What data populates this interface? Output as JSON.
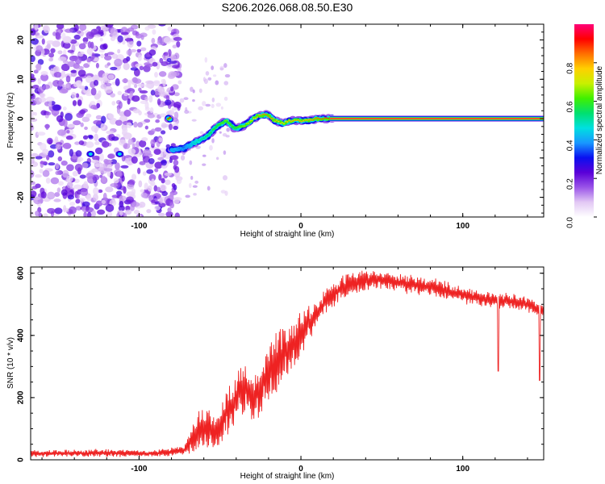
{
  "title": "S206.2026.068.08.50.E30",
  "chart_data": [
    {
      "type": "heatmap",
      "title": "S206.2026.068.08.50.E30",
      "xlabel": "Height of straight line (km)",
      "ylabel": "Frequency (Hz)",
      "xlim": [
        -167,
        150
      ],
      "ylim": [
        -25,
        24
      ],
      "xticks": [
        -100,
        0,
        100
      ],
      "xtick_labels": [
        "-100",
        "0",
        "100"
      ],
      "yticks": [
        -20,
        -10,
        0,
        10,
        20
      ],
      "ytick_labels": [
        "-20",
        "-10",
        "0",
        "10",
        "20"
      ],
      "colorbar": {
        "label": "Normalized spectral amplitude",
        "range": [
          0,
          1
        ],
        "ticks": [
          0.0,
          0.2,
          0.4,
          0.6,
          0.8
        ],
        "tick_labels": [
          "0.0",
          "0.2",
          "0.4",
          "0.6",
          "0.8"
        ],
        "colormap": [
          "#ffffff",
          "#e2c8f4",
          "#9a54e8",
          "#5a00d8",
          "#0a10f0",
          "#1898ff",
          "#00e0e0",
          "#00e070",
          "#40f000",
          "#c8f000",
          "#ffd000",
          "#ff7000",
          "#ff0000",
          "#ff0078"
        ]
      },
      "noise_region_x": [
        -167,
        -75
      ],
      "peak_track": [
        {
          "x": -80,
          "freq": -8,
          "amp": 0.45
        },
        {
          "x": -72,
          "freq": -7.5,
          "amp": 0.4
        },
        {
          "x": -65,
          "freq": -6,
          "amp": 0.5
        },
        {
          "x": -58,
          "freq": -4.5,
          "amp": 0.55
        },
        {
          "x": -52,
          "freq": -2,
          "amp": 0.6
        },
        {
          "x": -46,
          "freq": -0.5,
          "amp": 0.65
        },
        {
          "x": -41,
          "freq": -2.5,
          "amp": 0.6
        },
        {
          "x": -36,
          "freq": -2,
          "amp": 0.65
        },
        {
          "x": -31,
          "freq": -0.5,
          "amp": 0.7
        },
        {
          "x": -26,
          "freq": 0.8,
          "amp": 0.8
        },
        {
          "x": -21,
          "freq": 1,
          "amp": 0.85
        },
        {
          "x": -16,
          "freq": -0.5,
          "amp": 0.8
        },
        {
          "x": -11,
          "freq": -1.2,
          "amp": 0.75
        },
        {
          "x": -6,
          "freq": -0.5,
          "amp": 0.8
        },
        {
          "x": -1,
          "freq": -0.5,
          "amp": 0.8
        },
        {
          "x": 4,
          "freq": -0.6,
          "amp": 0.8
        },
        {
          "x": 10,
          "freq": 0,
          "amp": 0.85
        },
        {
          "x": 18,
          "freq": 0,
          "amp": 0.9
        },
        {
          "x": 150,
          "freq": 0,
          "amp": 0.9
        }
      ]
    },
    {
      "type": "line",
      "xlabel": "Height of straight line (km)",
      "ylabel": "SNR (10 * v/v)",
      "xlim": [
        -167,
        150
      ],
      "ylim": [
        0,
        620
      ],
      "xticks": [
        -100,
        0,
        100
      ],
      "xtick_labels": [
        "-100",
        "0",
        "100"
      ],
      "yticks": [
        0,
        200,
        400,
        600
      ],
      "ytick_labels": [
        "0",
        "200",
        "400",
        "600"
      ],
      "series": [
        {
          "name": "SNR",
          "color": "#ee2222",
          "envelope": [
            {
              "x": -167,
              "mean": 20,
              "amp": 10
            },
            {
              "x": -120,
              "mean": 22,
              "amp": 12
            },
            {
              "x": -90,
              "mean": 20,
              "amp": 10
            },
            {
              "x": -72,
              "mean": 30,
              "amp": 15
            },
            {
              "x": -62,
              "mean": 100,
              "amp": 70
            },
            {
              "x": -52,
              "mean": 90,
              "amp": 60
            },
            {
              "x": -45,
              "mean": 160,
              "amp": 70
            },
            {
              "x": -36,
              "mean": 230,
              "amp": 80
            },
            {
              "x": -28,
              "mean": 200,
              "amp": 80
            },
            {
              "x": -20,
              "mean": 290,
              "amp": 90
            },
            {
              "x": -12,
              "mean": 330,
              "amp": 90
            },
            {
              "x": -5,
              "mean": 370,
              "amp": 80
            },
            {
              "x": 5,
              "mean": 440,
              "amp": 50
            },
            {
              "x": 15,
              "mean": 510,
              "amp": 40
            },
            {
              "x": 30,
              "mean": 570,
              "amp": 35
            },
            {
              "x": 50,
              "mean": 580,
              "amp": 30
            },
            {
              "x": 80,
              "mean": 555,
              "amp": 30
            },
            {
              "x": 110,
              "mean": 520,
              "amp": 25
            },
            {
              "x": 140,
              "mean": 500,
              "amp": 25
            },
            {
              "x": 150,
              "mean": 480,
              "amp": 25
            }
          ],
          "spikes": [
            {
              "x": 122,
              "y": 285
            },
            {
              "x": 147.5,
              "y": 255
            }
          ]
        }
      ]
    }
  ]
}
